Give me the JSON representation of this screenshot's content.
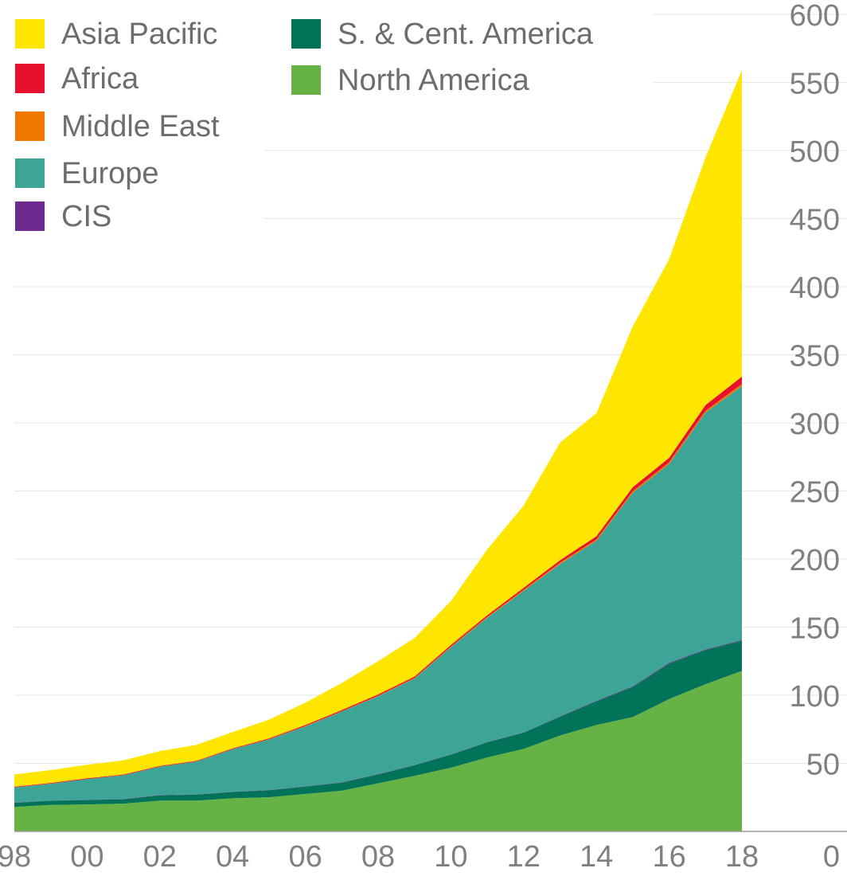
{
  "chart_data": {
    "type": "area",
    "stacked": true,
    "x": [
      1998,
      1999,
      2000,
      2001,
      2002,
      2003,
      2004,
      2005,
      2006,
      2007,
      2008,
      2009,
      2010,
      2011,
      2012,
      2013,
      2014,
      2015,
      2016,
      2017,
      2018
    ],
    "xticks": [
      "98",
      "00",
      "02",
      "04",
      "06",
      "08",
      "10",
      "12",
      "14",
      "16",
      "18"
    ],
    "ylim": [
      0,
      600
    ],
    "yticks": [
      0,
      50,
      100,
      150,
      200,
      250,
      300,
      350,
      400,
      450,
      500,
      550,
      600
    ],
    "y_axis_side": "right",
    "grid": true,
    "legend_position": "top-left",
    "series": [
      {
        "name": "North America",
        "color": "#66b245",
        "values": [
          18,
          19.5,
          19.8,
          20.4,
          22.6,
          22.6,
          24.3,
          25.1,
          27.5,
          29.9,
          35.3,
          40.8,
          46.8,
          54.3,
          60.6,
          70.4,
          78.1,
          84.0,
          97.2,
          108.1,
          117.9
        ]
      },
      {
        "name": "S. & Cent. America",
        "color": "#007358",
        "values": [
          3,
          3,
          3.3,
          3.2,
          3.9,
          4.4,
          4.7,
          5.1,
          5.4,
          5.9,
          6.6,
          7.8,
          9.6,
          11.2,
          11.9,
          13.8,
          17.4,
          22.1,
          26.1,
          25.1,
          22.1
        ]
      },
      {
        "name": "CIS",
        "color": "#6e2a8e",
        "values": [
          0.2,
          0.2,
          0.2,
          0.2,
          0.2,
          0.2,
          0.2,
          0.2,
          0.2,
          0.2,
          0.2,
          0.2,
          0.2,
          0.2,
          0.2,
          0.3,
          0.4,
          0.4,
          0.5,
          0.5,
          0.5
        ]
      },
      {
        "name": "Europe",
        "color": "#3ca596",
        "values": [
          11,
          12.3,
          15.1,
          17.4,
          20.8,
          24.0,
          31.1,
          37.1,
          44.0,
          52.0,
          57.2,
          63.4,
          78.6,
          91.2,
          103.9,
          111.9,
          117.5,
          142.2,
          146.1,
          173.9,
          186.6
        ]
      },
      {
        "name": "Middle East",
        "color": "#f07800",
        "values": [
          0.1,
          0.1,
          0.1,
          0.1,
          0.1,
          0.1,
          0.1,
          0.1,
          0.2,
          0.2,
          0.3,
          0.4,
          0.5,
          0.6,
          0.8,
          0.9,
          1.0,
          1.1,
          1.2,
          1.3,
          1.5
        ]
      },
      {
        "name": "Africa",
        "color": "#e8112d",
        "values": [
          0.5,
          0.5,
          0.5,
          0.5,
          0.5,
          0.5,
          0.6,
          0.7,
          0.8,
          0.9,
          1.0,
          1.1,
          1.2,
          1.3,
          1.5,
          1.8,
          2.3,
          3.0,
          3.2,
          4.2,
          5.4
        ]
      },
      {
        "name": "Asia Pacific",
        "color": "#ffe600",
        "values": [
          9,
          9.4,
          10.0,
          10.4,
          10.9,
          11.7,
          12.0,
          13.8,
          16.4,
          19.9,
          24.4,
          28.3,
          32.2,
          48.4,
          60.4,
          86.4,
          90.4,
          118.1,
          146.0,
          181.9,
          225.0
        ]
      }
    ]
  }
}
